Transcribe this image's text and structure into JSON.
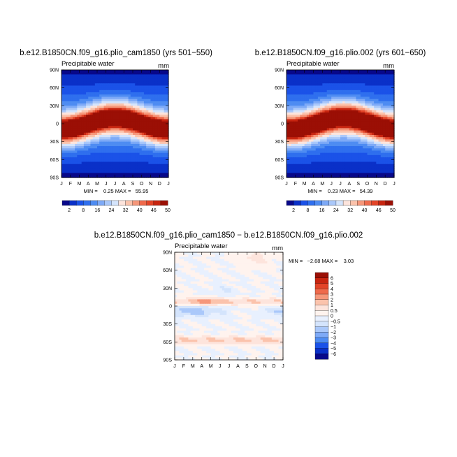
{
  "chart_data": [
    {
      "type": "heatmap",
      "title": "b.e12.B1850CN.f09_g16.plio_cam1850 (yrs 501−550)",
      "subtitle_left": "Precipitable water",
      "subtitle_right": "mm",
      "x_tick_labels": [
        "J",
        "F",
        "M",
        "A",
        "M",
        "J",
        "J",
        "A",
        "S",
        "O",
        "N",
        "D",
        "J"
      ],
      "y_tick_labels": [
        "90N",
        "60N",
        "30N",
        "0",
        "30S",
        "60S",
        "90S"
      ],
      "stats_text": "MIN =    0.25 MAX =   55.95",
      "min": 0.25,
      "max": 55.95,
      "field": "climatology",
      "phase_shift": 0,
      "colorbar": {
        "orientation": "horizontal",
        "labels": [
          "2",
          "8",
          "16",
          "24",
          "32",
          "40",
          "46",
          "50"
        ],
        "colors": [
          "#08088a",
          "#0a30c8",
          "#1b52e8",
          "#2f6fee",
          "#4e8cf2",
          "#7eaaf7",
          "#aac8fa",
          "#d4e4fc",
          "#fde4dc",
          "#fbc3ac",
          "#f6977a",
          "#ef6a4c",
          "#e34428",
          "#c82510",
          "#9b0f05"
        ]
      }
    },
    {
      "type": "heatmap",
      "title": "b.e12.B1850CN.f09_g16.plio.002 (yrs 601−650)",
      "subtitle_left": "Precipitable water",
      "subtitle_right": "mm",
      "x_tick_labels": [
        "J",
        "F",
        "M",
        "A",
        "M",
        "J",
        "J",
        "A",
        "S",
        "O",
        "N",
        "D",
        "J"
      ],
      "y_tick_labels": [
        "90N",
        "60N",
        "30N",
        "0",
        "30S",
        "60S",
        "90S"
      ],
      "stats_text": "MIN =    0.23 MAX =   54.39",
      "min": 0.23,
      "max": 54.39,
      "field": "climatology",
      "phase_shift": 0.03,
      "colorbar": {
        "orientation": "horizontal",
        "labels": [
          "2",
          "8",
          "16",
          "24",
          "32",
          "40",
          "46",
          "50"
        ],
        "colors": [
          "#08088a",
          "#0a30c8",
          "#1b52e8",
          "#2f6fee",
          "#4e8cf2",
          "#7eaaf7",
          "#aac8fa",
          "#d4e4fc",
          "#fde4dc",
          "#fbc3ac",
          "#f6977a",
          "#ef6a4c",
          "#e34428",
          "#c82510",
          "#9b0f05"
        ]
      }
    },
    {
      "type": "heatmap",
      "title": "b.e12.B1850CN.f09_g16.plio_cam1850 − b.e12.B1850CN.f09_g16.plio.002",
      "subtitle_left": "Precipitable water",
      "subtitle_right": "mm",
      "x_tick_labels": [
        "J",
        "F",
        "M",
        "A",
        "M",
        "J",
        "J",
        "A",
        "S",
        "O",
        "N",
        "D",
        "J"
      ],
      "y_tick_labels": [
        "90N",
        "60N",
        "30N",
        "0",
        "30S",
        "60S",
        "90S"
      ],
      "stats_text": "MIN =   −2.68 MAX =    3.03",
      "min": -2.68,
      "max": 3.03,
      "field": "difference",
      "colorbar": {
        "orientation": "vertical",
        "labels": [
          "6",
          "5",
          "4",
          "3",
          "2",
          "1",
          "0.5",
          "0",
          "−0.5",
          "−1",
          "−2",
          "−3",
          "−4",
          "−5",
          "−6"
        ],
        "colors": [
          "#9b0f05",
          "#c82510",
          "#e34428",
          "#ef6a4c",
          "#f6977a",
          "#fbc3ac",
          "#fde4dc",
          "#fff3ee",
          "#e8f0fe",
          "#d4e4fc",
          "#aac8fa",
          "#7eaaf7",
          "#4e8cf2",
          "#1b52e8",
          "#0a30c8",
          "#08088a"
        ]
      }
    }
  ]
}
